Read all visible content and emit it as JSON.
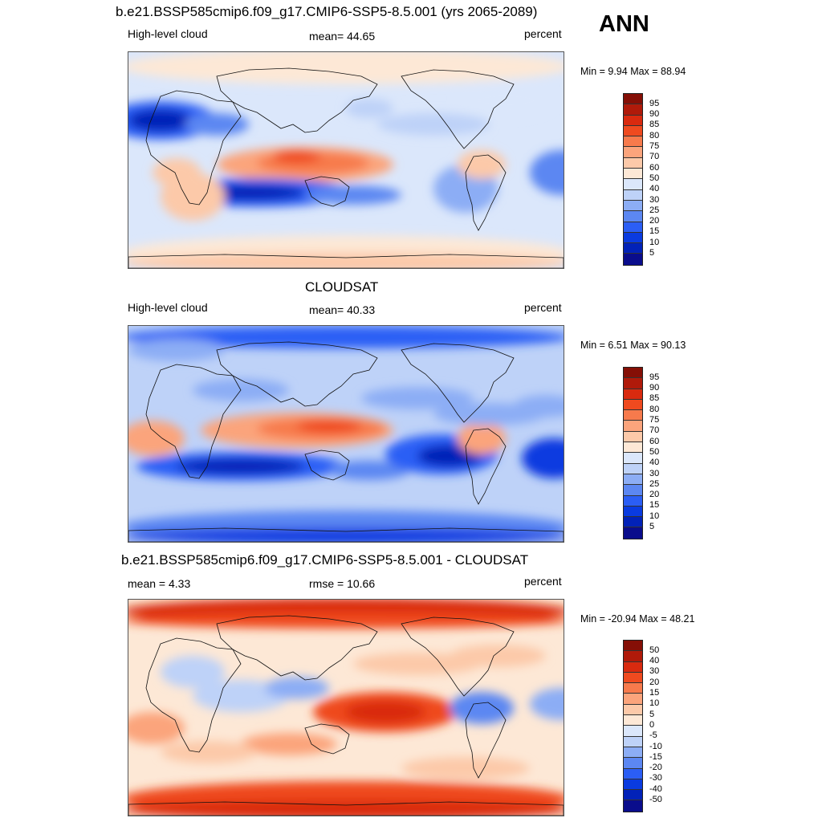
{
  "ann_label": "ANN",
  "palettes": {
    "field": [
      "#0a0d8c",
      "#0222b8",
      "#0a3be0",
      "#2b5ef5",
      "#5c87f2",
      "#8cadf5",
      "#bed2f8",
      "#dbe7fb",
      "#fde8d6",
      "#fcc9a9",
      "#fba47c",
      "#f77a4c",
      "#ef4a1f",
      "#d92a0f",
      "#b01a0a",
      "#850f06"
    ],
    "diff": [
      "#0a0d8c",
      "#0222b8",
      "#0a3be0",
      "#2b5ef5",
      "#5c87f2",
      "#8cadf5",
      "#bed2f8",
      "#dbe7fb",
      "#fde8d6",
      "#fcc9a9",
      "#fba47c",
      "#f77a4c",
      "#ef4a1f",
      "#d92a0f",
      "#b01a0a",
      "#850f06"
    ]
  },
  "panels": [
    {
      "title": "b.e21.BSSP585cmip6.f09_g17.CMIP6-SSP5-8.5.001 (yrs 2065-2089)",
      "left_label": "High-level cloud",
      "center_label": "mean=  44.65",
      "right_label": "percent",
      "minmax": "Min =   9.94 Max =  88.94",
      "levels": [
        "95",
        "90",
        "85",
        "80",
        "75",
        "70",
        "60",
        "50",
        "40",
        "30",
        "25",
        "20",
        "15",
        "10",
        "5"
      ]
    },
    {
      "title": "CLOUDSAT",
      "left_label": "High-level cloud",
      "center_label": "mean=  40.33",
      "right_label": "percent",
      "minmax": "Min =   6.51 Max =  90.13",
      "levels": [
        "95",
        "90",
        "85",
        "80",
        "75",
        "70",
        "60",
        "50",
        "40",
        "30",
        "25",
        "20",
        "15",
        "10",
        "5"
      ]
    },
    {
      "title": "b.e21.BSSP585cmip6.f09_g17.CMIP6-SSP5-8.5.001 - CLOUDSAT",
      "left_label": "mean =   4.33",
      "center_label": "rmse =  10.66",
      "right_label": "percent",
      "minmax": "Min = -20.94 Max =  48.21",
      "levels": [
        "50",
        "40",
        "30",
        "20",
        "15",
        "10",
        "5",
        "0",
        "-5",
        "-10",
        "-15",
        "-20",
        "-30",
        "-40",
        "-50"
      ]
    }
  ]
}
